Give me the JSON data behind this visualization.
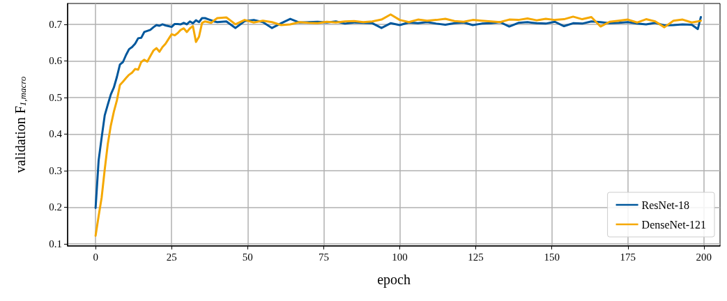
{
  "chart_data": {
    "type": "line",
    "xlabel": "epoch",
    "ylabel": "validation F$_{1,macro}$",
    "xlim": [
      -9.2,
      205.3
    ],
    "xticks": [
      0,
      25,
      50,
      75,
      100,
      125,
      150,
      175,
      200
    ],
    "ylim": [
      0.094,
      0.757
    ],
    "yticks": [
      0.1,
      0.2,
      0.3,
      0.4,
      0.5,
      0.6,
      0.7
    ],
    "grid": true,
    "legend": "bottom right",
    "line_style": "solid",
    "marker": "none",
    "x": [
      0,
      1,
      2,
      3,
      4,
      5,
      6,
      7,
      8,
      9,
      10,
      11,
      12,
      13,
      14,
      15,
      16,
      17,
      18,
      19,
      20,
      21,
      22,
      23,
      24,
      25,
      26,
      27,
      28,
      29,
      30,
      31,
      32,
      33,
      34,
      35,
      36,
      37,
      38,
      39,
      40,
      43,
      46,
      49,
      52,
      55,
      58,
      61,
      64,
      67,
      70,
      73,
      76,
      79,
      82,
      85,
      88,
      91,
      94,
      97,
      100,
      103,
      106,
      109,
      112,
      115,
      118,
      121,
      124,
      127,
      130,
      133,
      136,
      139,
      142,
      145,
      148,
      151,
      154,
      157,
      160,
      163,
      166,
      169,
      172,
      175,
      178,
      181,
      184,
      187,
      190,
      193,
      196,
      198,
      199
    ],
    "series": [
      {
        "name": "ResNet-18",
        "color": "#00579c",
        "values": [
          0.198,
          0.328,
          0.391,
          0.451,
          0.48,
          0.508,
          0.527,
          0.556,
          0.59,
          0.597,
          0.616,
          0.632,
          0.638,
          0.647,
          0.662,
          0.663,
          0.679,
          0.682,
          0.685,
          0.692,
          0.698,
          0.696,
          0.7,
          0.697,
          0.695,
          0.693,
          0.701,
          0.701,
          0.7,
          0.704,
          0.7,
          0.708,
          0.703,
          0.711,
          0.706,
          0.717,
          0.717,
          0.714,
          0.711,
          0.708,
          0.706,
          0.708,
          0.69,
          0.709,
          0.712,
          0.706,
          0.69,
          0.703,
          0.715,
          0.705,
          0.706,
          0.707,
          0.705,
          0.708,
          0.702,
          0.705,
          0.704,
          0.703,
          0.69,
          0.703,
          0.698,
          0.705,
          0.703,
          0.706,
          0.702,
          0.699,
          0.703,
          0.705,
          0.698,
          0.702,
          0.703,
          0.706,
          0.694,
          0.704,
          0.706,
          0.703,
          0.702,
          0.707,
          0.695,
          0.703,
          0.702,
          0.708,
          0.706,
          0.703,
          0.704,
          0.706,
          0.702,
          0.7,
          0.704,
          0.697,
          0.698,
          0.7,
          0.699,
          0.687,
          0.72
        ]
      },
      {
        "name": "DenseNet-121",
        "color": "#f5a800",
        "values": [
          0.122,
          0.176,
          0.227,
          0.303,
          0.372,
          0.423,
          0.461,
          0.492,
          0.534,
          0.543,
          0.553,
          0.562,
          0.568,
          0.578,
          0.576,
          0.597,
          0.603,
          0.598,
          0.613,
          0.628,
          0.635,
          0.625,
          0.638,
          0.647,
          0.66,
          0.673,
          0.67,
          0.676,
          0.685,
          0.689,
          0.679,
          0.689,
          0.695,
          0.652,
          0.666,
          0.704,
          0.708,
          0.706,
          0.704,
          0.711,
          0.717,
          0.719,
          0.7,
          0.712,
          0.705,
          0.71,
          0.706,
          0.698,
          0.7,
          0.706,
          0.704,
          0.703,
          0.707,
          0.705,
          0.708,
          0.709,
          0.706,
          0.708,
          0.713,
          0.727,
          0.712,
          0.706,
          0.713,
          0.71,
          0.712,
          0.715,
          0.709,
          0.707,
          0.712,
          0.71,
          0.708,
          0.706,
          0.713,
          0.712,
          0.716,
          0.711,
          0.715,
          0.712,
          0.714,
          0.721,
          0.714,
          0.72,
          0.694,
          0.707,
          0.71,
          0.713,
          0.705,
          0.714,
          0.708,
          0.692,
          0.71,
          0.713,
          0.705,
          0.708,
          0.71
        ]
      }
    ]
  }
}
